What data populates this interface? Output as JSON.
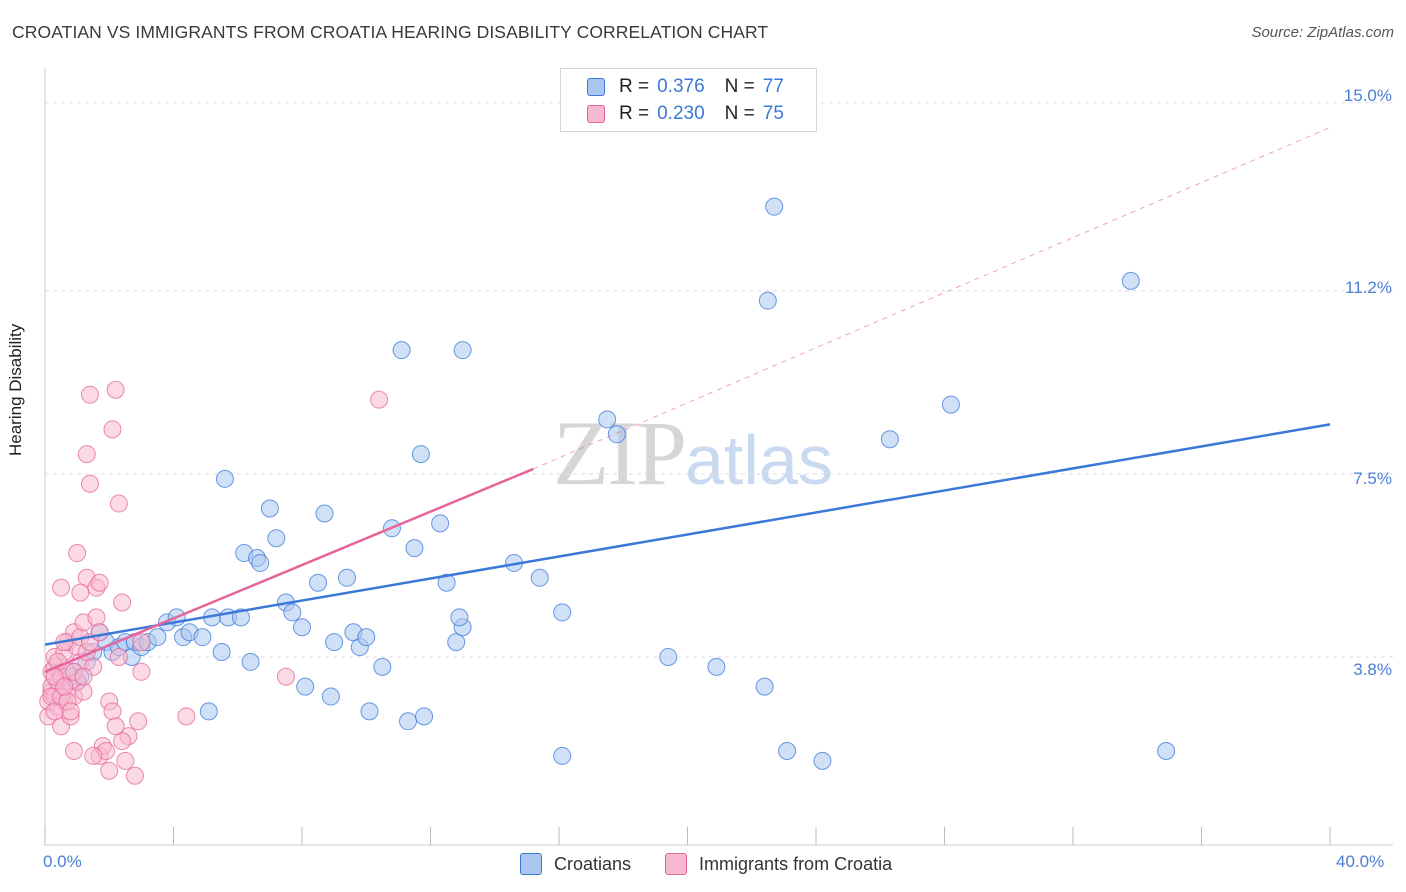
{
  "title": "CROATIAN VS IMMIGRANTS FROM CROATIA HEARING DISABILITY CORRELATION CHART",
  "source": "Source: ZipAtlas.com",
  "watermark": {
    "zip": "ZIP",
    "atlas": "atlas"
  },
  "legend": {
    "rows": [
      {
        "r_label": "R =",
        "r_value": "0.376",
        "n_label": "N =",
        "n_value": "77"
      },
      {
        "r_label": "R =",
        "r_value": "0.230",
        "n_label": "N =",
        "n_value": "75"
      }
    ]
  },
  "colors": {
    "blue": "#3b78d8",
    "blue_fill": "#a9c6ef",
    "pink": "#e5649a",
    "pink_fill": "#f7b9cf",
    "grid": "#dddddd"
  },
  "chart_data": {
    "type": "scatter",
    "title": "CROATIAN VS IMMIGRANTS FROM CROATIA HEARING DISABILITY CORRELATION CHART",
    "xlabel": "",
    "ylabel": "Hearing Disability",
    "xlim": [
      0,
      40
    ],
    "ylim": [
      0,
      15.5
    ],
    "x_tick_labels": [
      "0.0%",
      "40.0%"
    ],
    "y_ticks": [
      3.8,
      7.5,
      11.2,
      15.0
    ],
    "y_tick_labels": [
      "3.8%",
      "7.5%",
      "11.2%",
      "15.0%"
    ],
    "grid": true,
    "legend_position": "top-center",
    "series": [
      {
        "name": "Croatians",
        "color": "#3b78d8",
        "trend": {
          "x": [
            0,
            40
          ],
          "y": [
            4.05,
            8.5
          ],
          "dashed_extension": false
        },
        "points": [
          [
            0.6,
            3.3
          ],
          [
            0.9,
            3.5
          ],
          [
            1.1,
            3.4
          ],
          [
            1.3,
            3.7
          ],
          [
            1.5,
            3.9
          ],
          [
            1.7,
            4.3
          ],
          [
            1.9,
            4.1
          ],
          [
            2.1,
            3.9
          ],
          [
            2.3,
            4.0
          ],
          [
            2.5,
            4.1
          ],
          [
            2.7,
            3.8
          ],
          [
            2.8,
            4.1
          ],
          [
            3.0,
            4.0
          ],
          [
            3.2,
            4.1
          ],
          [
            3.5,
            4.2
          ],
          [
            3.8,
            4.5
          ],
          [
            4.1,
            4.6
          ],
          [
            4.3,
            4.2
          ],
          [
            4.5,
            4.3
          ],
          [
            4.9,
            4.2
          ],
          [
            5.2,
            4.6
          ],
          [
            5.5,
            3.9
          ],
          [
            5.7,
            4.6
          ],
          [
            6.1,
            4.6
          ],
          [
            6.4,
            3.7
          ],
          [
            5.6,
            7.4
          ],
          [
            6.2,
            5.9
          ],
          [
            6.6,
            5.8
          ],
          [
            6.7,
            5.7
          ],
          [
            7.0,
            6.8
          ],
          [
            7.2,
            6.2
          ],
          [
            7.5,
            4.9
          ],
          [
            7.7,
            4.7
          ],
          [
            8.0,
            4.4
          ],
          [
            8.1,
            3.2
          ],
          [
            8.5,
            5.3
          ],
          [
            8.7,
            6.7
          ],
          [
            8.9,
            3.0
          ],
          [
            9.0,
            4.1
          ],
          [
            9.4,
            5.4
          ],
          [
            9.6,
            4.3
          ],
          [
            9.8,
            4.0
          ],
          [
            10.0,
            4.2
          ],
          [
            10.1,
            2.7
          ],
          [
            10.5,
            3.6
          ],
          [
            10.8,
            6.4
          ],
          [
            11.1,
            10.0
          ],
          [
            11.3,
            2.5
          ],
          [
            11.5,
            6.0
          ],
          [
            11.8,
            2.6
          ],
          [
            11.7,
            7.9
          ],
          [
            12.3,
            6.5
          ],
          [
            12.5,
            5.3
          ],
          [
            12.8,
            4.1
          ],
          [
            13.0,
            4.4
          ],
          [
            13.0,
            10.0
          ],
          [
            14.6,
            5.7
          ],
          [
            15.4,
            5.4
          ],
          [
            12.9,
            4.6
          ],
          [
            16.1,
            4.7
          ],
          [
            16.1,
            1.8
          ],
          [
            17.5,
            8.6
          ],
          [
            17.8,
            8.3
          ],
          [
            19.4,
            3.8
          ],
          [
            20.9,
            3.6
          ],
          [
            22.4,
            3.2
          ],
          [
            22.7,
            12.9
          ],
          [
            22.5,
            11.0
          ],
          [
            23.1,
            1.9
          ],
          [
            24.2,
            1.7
          ],
          [
            26.3,
            8.2
          ],
          [
            28.2,
            8.9
          ],
          [
            33.8,
            11.4
          ],
          [
            34.9,
            1.9
          ],
          [
            5.1,
            2.7
          ],
          [
            1.0,
            3.3
          ],
          [
            0.8,
            3.4
          ]
        ]
      },
      {
        "name": "Immigrants from Croatia",
        "color": "#e5649a",
        "trend": {
          "x": [
            0,
            15.2
          ],
          "y": [
            3.5,
            7.6
          ],
          "dashed_extension": true,
          "dashed_to": [
            40,
            14.5
          ]
        },
        "points": [
          [
            0.1,
            2.6
          ],
          [
            0.1,
            2.9
          ],
          [
            0.2,
            3.1
          ],
          [
            0.2,
            3.2
          ],
          [
            0.2,
            3.5
          ],
          [
            0.3,
            3.6
          ],
          [
            0.3,
            3.8
          ],
          [
            0.3,
            3.0
          ],
          [
            0.4,
            3.3
          ],
          [
            0.4,
            2.8
          ],
          [
            0.5,
            3.4
          ],
          [
            0.5,
            2.4
          ],
          [
            0.6,
            2.9
          ],
          [
            0.6,
            3.9
          ],
          [
            0.7,
            4.1
          ],
          [
            0.7,
            3.5
          ],
          [
            0.8,
            3.2
          ],
          [
            0.8,
            2.6
          ],
          [
            0.9,
            4.3
          ],
          [
            0.9,
            3.0
          ],
          [
            1.0,
            4.0
          ],
          [
            1.0,
            3.3
          ],
          [
            1.1,
            4.2
          ],
          [
            1.1,
            3.7
          ],
          [
            1.2,
            4.5
          ],
          [
            1.2,
            3.1
          ],
          [
            1.3,
            3.9
          ],
          [
            1.3,
            5.4
          ],
          [
            1.4,
            4.1
          ],
          [
            1.5,
            3.6
          ],
          [
            1.6,
            4.6
          ],
          [
            1.7,
            4.3
          ],
          [
            0.5,
            5.2
          ],
          [
            1.0,
            5.9
          ],
          [
            1.1,
            5.1
          ],
          [
            1.4,
            7.3
          ],
          [
            1.3,
            7.9
          ],
          [
            1.4,
            9.1
          ],
          [
            1.6,
            5.2
          ],
          [
            1.7,
            5.3
          ],
          [
            1.7,
            1.8
          ],
          [
            1.8,
            2.0
          ],
          [
            1.9,
            1.9
          ],
          [
            2.0,
            1.5
          ],
          [
            2.0,
            2.9
          ],
          [
            2.1,
            2.7
          ],
          [
            2.1,
            8.4
          ],
          [
            2.2,
            9.2
          ],
          [
            2.3,
            6.9
          ],
          [
            2.4,
            4.9
          ],
          [
            2.5,
            1.7
          ],
          [
            2.6,
            2.2
          ],
          [
            2.8,
            1.4
          ],
          [
            2.4,
            2.1
          ],
          [
            2.3,
            3.8
          ],
          [
            1.5,
            1.8
          ],
          [
            0.9,
            1.9
          ],
          [
            0.6,
            4.1
          ],
          [
            0.4,
            3.7
          ],
          [
            0.3,
            3.4
          ],
          [
            2.2,
            2.4
          ],
          [
            3.0,
            4.1
          ],
          [
            2.9,
            2.5
          ],
          [
            3.0,
            3.5
          ],
          [
            4.4,
            2.6
          ],
          [
            7.5,
            3.4
          ],
          [
            10.4,
            9.0
          ],
          [
            0.2,
            3.0
          ],
          [
            0.3,
            2.7
          ],
          [
            0.5,
            3.0
          ],
          [
            0.7,
            2.9
          ],
          [
            0.9,
            3.5
          ],
          [
            1.2,
            3.4
          ],
          [
            0.6,
            3.2
          ],
          [
            0.8,
            2.7
          ]
        ]
      }
    ]
  },
  "bottom_legend": [
    "Croatians",
    "Immigrants from Croatia"
  ]
}
